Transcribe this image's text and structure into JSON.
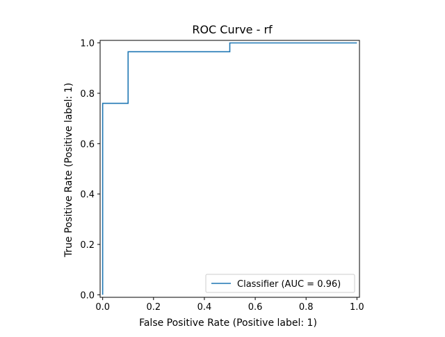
{
  "chart_data": {
    "type": "line",
    "title": "ROC Curve - rf",
    "xlabel": "False Positive Rate (Positive label: 1)",
    "ylabel": "True Positive Rate (Positive label: 1)",
    "xlim": [
      -0.01,
      1.01
    ],
    "ylim": [
      -0.01,
      1.01
    ],
    "x_ticks": [
      0.0,
      0.2,
      0.4,
      0.6,
      0.8,
      1.0
    ],
    "y_ticks": [
      0.0,
      0.2,
      0.4,
      0.6,
      0.8,
      1.0
    ],
    "x_tick_labels": [
      "0.0",
      "0.2",
      "0.4",
      "0.6",
      "0.8",
      "1.0"
    ],
    "y_tick_labels": [
      "0.0",
      "0.2",
      "0.4",
      "0.6",
      "0.8",
      "1.0"
    ],
    "grid": false,
    "legend_position": "lower-right",
    "series": [
      {
        "name": "Classifier (AUC = 0.96)",
        "color": "#1f77b4",
        "x": [
          0.0,
          0.0,
          0.0,
          0.1,
          0.1,
          0.5,
          0.5,
          1.0
        ],
        "y": [
          0.0,
          0.76,
          0.76,
          0.76,
          0.965,
          0.965,
          1.0,
          1.0
        ]
      }
    ]
  }
}
